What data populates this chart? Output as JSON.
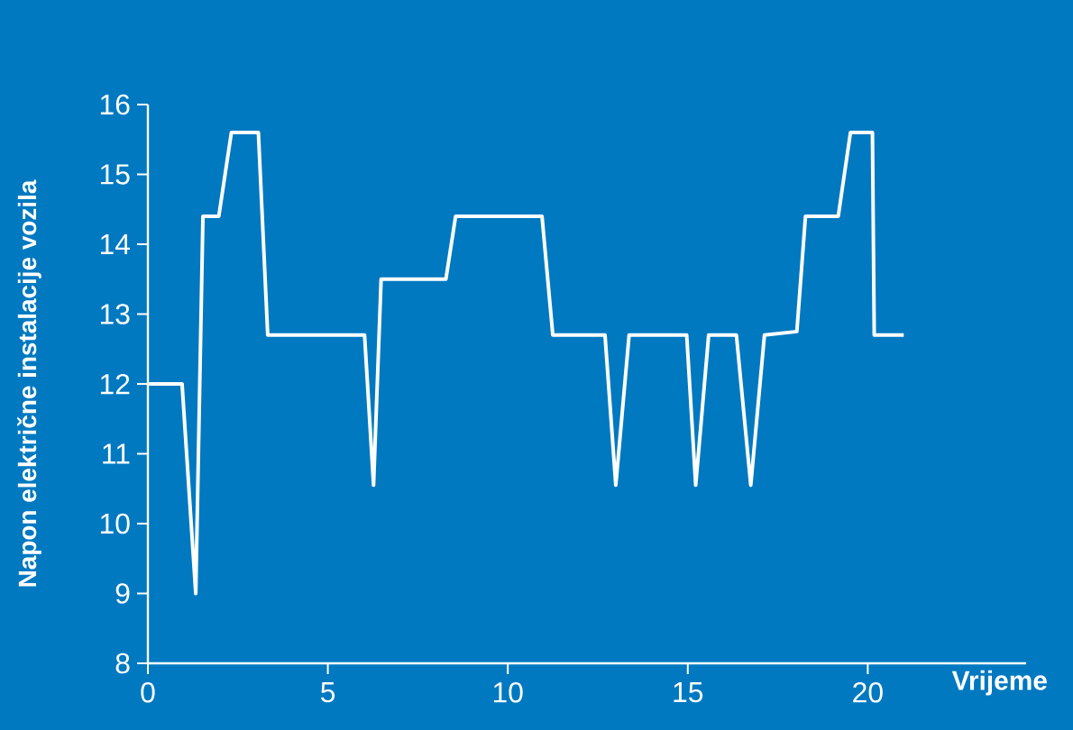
{
  "chart_data": {
    "type": "line",
    "xlabel": "Vrijeme",
    "ylabel": "Napon električne instalacije vozila",
    "xlim": [
      0,
      24.4
    ],
    "ylim": [
      8,
      16
    ],
    "xticks": [
      0,
      5,
      10,
      15,
      20
    ],
    "yticks": [
      8,
      9,
      10,
      11,
      12,
      13,
      14,
      15,
      16
    ],
    "line_style": "solid",
    "series": [
      {
        "color": "#ffffff",
        "x": [
          0,
          0.95,
          1.33,
          1.53,
          1.97,
          2.32,
          3.07,
          3.33,
          6.02,
          6.27,
          6.48,
          8.28,
          8.55,
          10.95,
          11.25,
          12.7,
          13.0,
          13.37,
          14.97,
          15.22,
          15.58,
          16.35,
          16.75,
          17.13,
          18.03,
          18.27,
          19.18,
          19.52,
          20.13,
          20.18,
          21.0
        ],
        "values": [
          12.0,
          12.0,
          9.0,
          14.4,
          14.4,
          15.6,
          15.6,
          12.7,
          12.7,
          10.55,
          13.5,
          13.5,
          14.4,
          14.4,
          12.7,
          12.7,
          10.55,
          12.7,
          12.7,
          10.55,
          12.7,
          12.7,
          10.55,
          12.7,
          12.75,
          14.4,
          14.4,
          15.6,
          15.6,
          12.7,
          12.7
        ]
      }
    ]
  }
}
